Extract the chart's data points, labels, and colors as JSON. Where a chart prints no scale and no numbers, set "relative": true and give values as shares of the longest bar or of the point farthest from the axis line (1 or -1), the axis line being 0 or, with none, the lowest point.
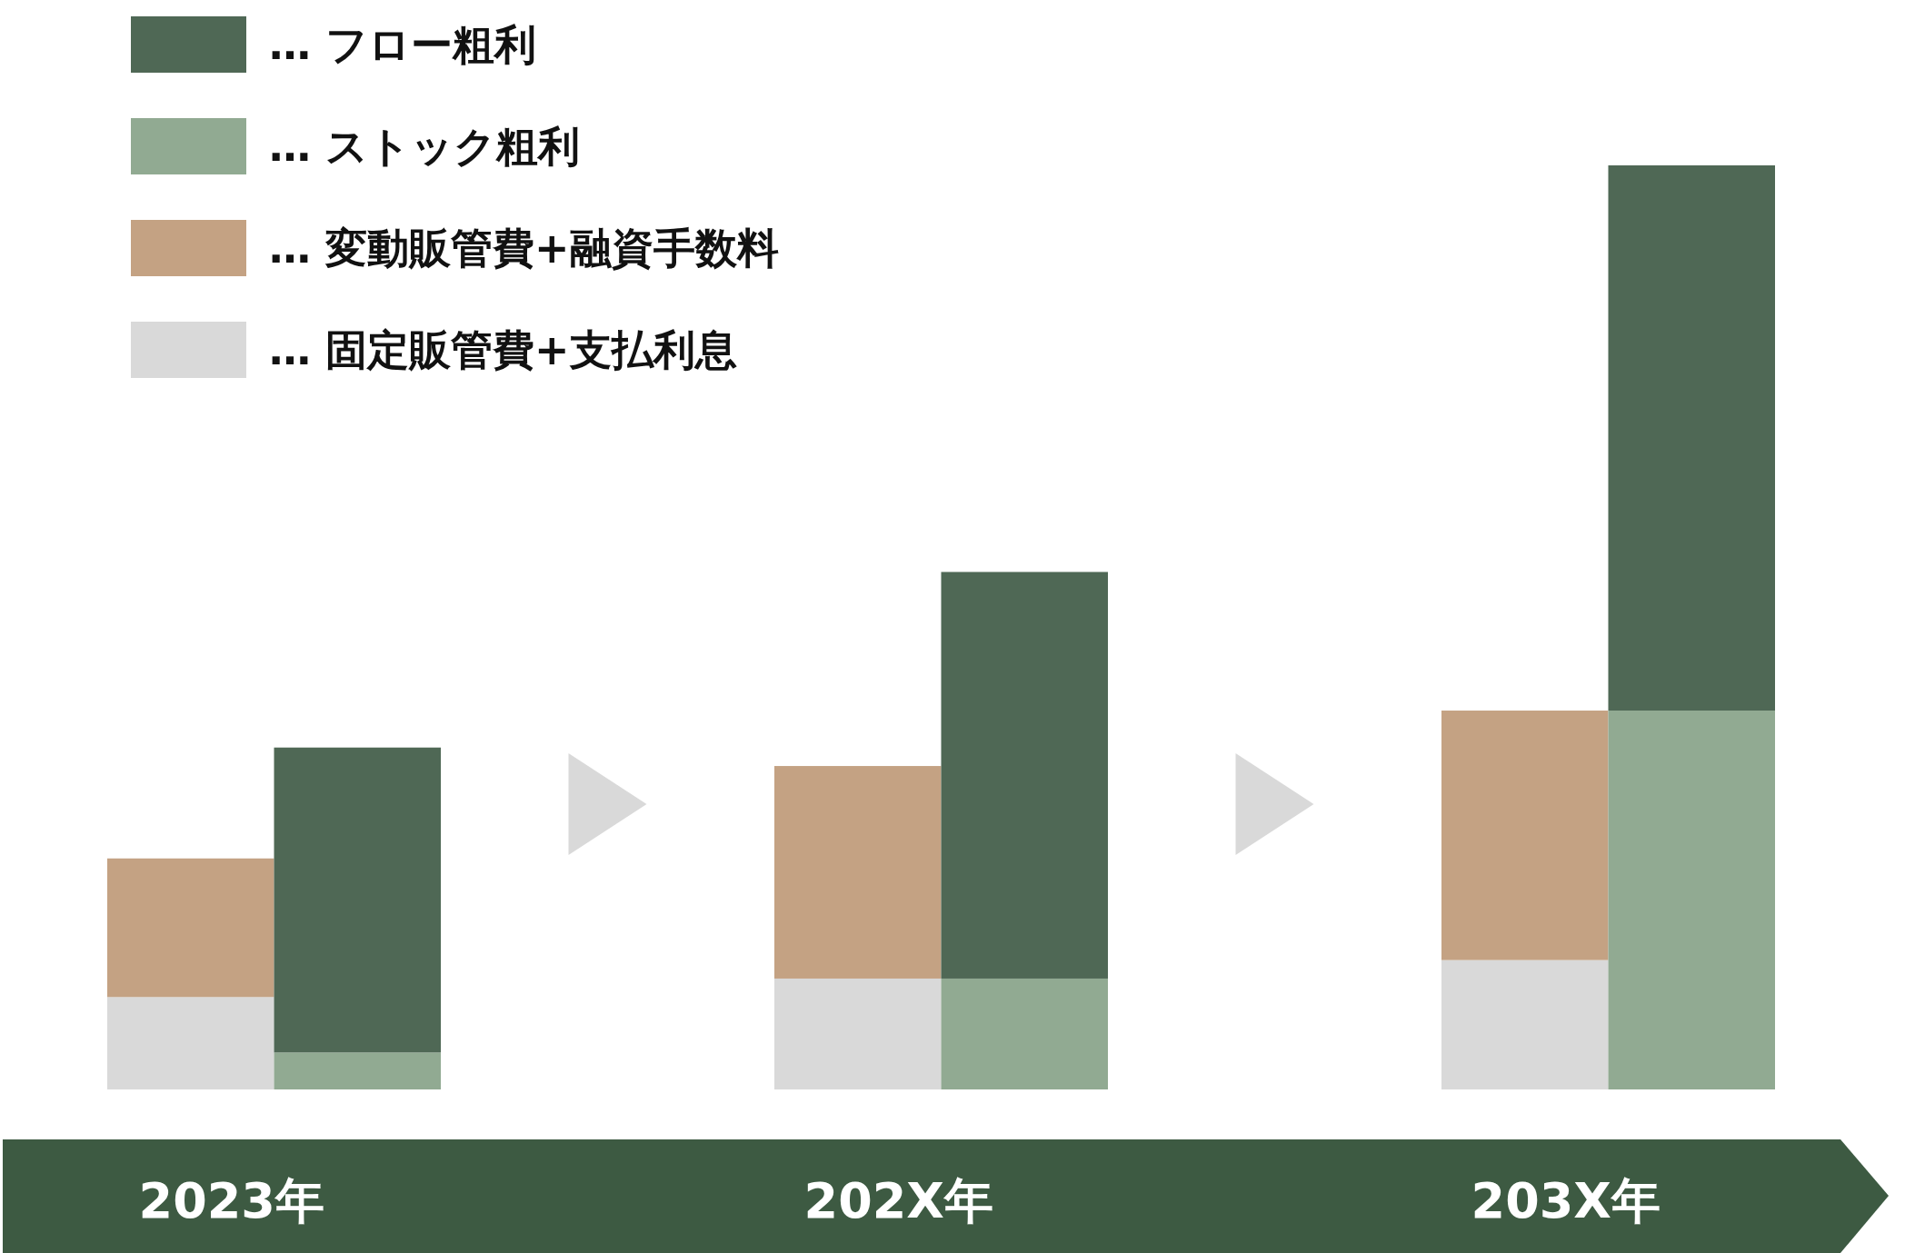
{
  "chart_data": {
    "type": "bar",
    "stacked": true,
    "relative": true,
    "legend": "top left",
    "categories": [
      "2023年",
      null,
      null,
      null,
      "202X年",
      null,
      null,
      null,
      "203X年",
      null
    ],
    "series": [
      {
        "name": "… 固定販管費+支払利息",
        "color": "#d9d9d9",
        "values": [
          0.1,
          null,
          null,
          null,
          0.12,
          null,
          null,
          null,
          0.14,
          null
        ]
      },
      {
        "name": "… 変動販管費+融資手数料",
        "color": "#c4a283",
        "values": [
          0.15,
          null,
          null,
          null,
          0.23,
          null,
          null,
          null,
          0.27,
          null
        ]
      },
      {
        "name": "… ストック粗利",
        "color": "#91aa92",
        "values": [
          null,
          0.04,
          null,
          null,
          null,
          0.12,
          null,
          null,
          null,
          0.41
        ]
      },
      {
        "name": "… フロー粗利",
        "color": "#4f6855",
        "values": [
          null,
          0.33,
          null,
          null,
          null,
          0.44,
          null,
          null,
          null,
          0.59
        ]
      }
    ]
  }
}
